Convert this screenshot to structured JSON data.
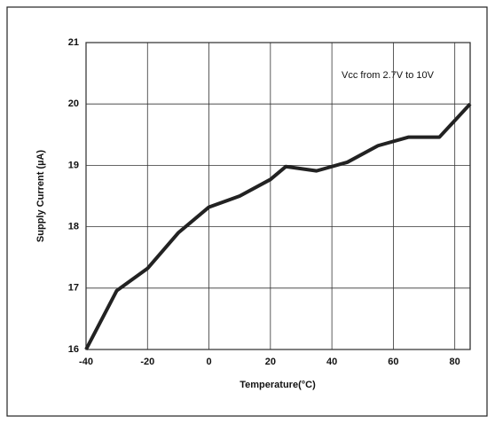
{
  "chart_data": {
    "type": "line",
    "x_label": "Temperature(°C)",
    "y_label": "Supply Current (µA)",
    "annotation": "Vcc from 2.7V to 10V",
    "x": [
      -40,
      -30,
      -20,
      -10,
      0,
      10,
      20,
      25,
      35,
      45,
      55,
      65,
      75,
      85
    ],
    "series": [
      {
        "name": "Supply Current",
        "color": "#222222",
        "values": [
          16.0,
          16.96,
          17.32,
          17.9,
          18.32,
          18.5,
          18.77,
          18.98,
          18.91,
          19.05,
          19.32,
          19.46,
          19.46,
          20.0
        ]
      }
    ],
    "xlim": [
      -40,
      85
    ],
    "xticks": [
      -40,
      -20,
      0,
      20,
      40,
      60,
      80
    ],
    "ylim": [
      16,
      21
    ],
    "yticks": [
      16,
      17,
      18,
      19,
      20,
      21
    ],
    "grid": true
  }
}
